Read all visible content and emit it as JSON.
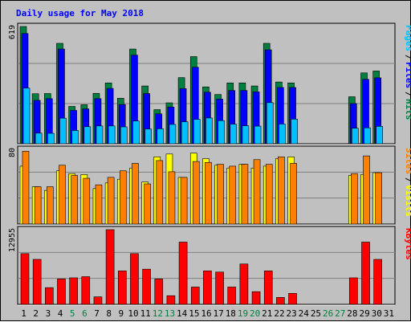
{
  "chart_data": {
    "type": "bar",
    "title": "Daily usage for May 2018",
    "categories": [
      "1",
      "2",
      "3",
      "4",
      "5",
      "6",
      "7",
      "8",
      "9",
      "10",
      "11",
      "12",
      "13",
      "14",
      "15",
      "16",
      "17",
      "18",
      "19",
      "20",
      "21",
      "22",
      "23",
      "24",
      "25",
      "26",
      "27",
      "28",
      "29",
      "30",
      "31"
    ],
    "weekend_days": [
      "5",
      "6",
      "12",
      "13",
      "19",
      "20",
      "26",
      "27"
    ],
    "panels": [
      {
        "name": "pages-files-hits",
        "ymax_label": "619",
        "ylim": [
          0,
          619
        ],
        "legend": [
          "Pages",
          "/",
          "Files",
          "/",
          "Hits"
        ],
        "legend_colors": [
          "#00c0ff",
          "#000000",
          "#0000ff",
          "#000000",
          "#008040"
        ],
        "series": [
          {
            "name": "Hits",
            "color": "#008040",
            "values": [
              619,
              264,
              265,
              530,
              197,
              206,
              266,
              321,
              240,
              500,
              305,
              180,
              216,
              349,
              460,
              300,
              260,
              321,
              321,
              305,
              530,
              326,
              321,
              0,
              0,
              0,
              0,
              248,
              374,
              384,
              0
            ]
          },
          {
            "name": "Files",
            "color": "#0000ff",
            "values": [
              582,
              229,
              238,
              500,
              176,
              184,
              238,
              292,
              207,
              468,
              265,
              158,
              194,
              291,
              404,
              272,
              236,
              281,
              281,
              274,
              496,
              297,
              297,
              0,
              0,
              0,
              0,
              212,
              340,
              348,
              0
            ]
          },
          {
            "name": "Pages",
            "color": "#00c0ff",
            "values": [
              294,
              56,
              55,
              135,
              70,
              90,
              94,
              94,
              89,
              120,
              78,
              79,
              102,
              116,
              129,
              136,
              122,
              103,
              95,
              93,
              217,
              104,
              130,
              0,
              0,
              0,
              0,
              82,
              84,
              92,
              0
            ]
          }
        ]
      },
      {
        "name": "visits-sites",
        "ymax_label": "80",
        "ylim": [
          0,
          80
        ],
        "legend": [
          "Sites",
          "/",
          "Visits"
        ],
        "legend_colors": [
          "#ff8000",
          "#000000",
          "#ffff00"
        ],
        "series": [
          {
            "name": "Visits",
            "color": "#ffff00",
            "values": [
              62,
              40,
              36,
              57,
              54,
              53,
              38,
              44,
              48,
              60,
              45,
              72,
              75,
              50,
              76,
              70,
              63,
              60,
              64,
              60,
              62,
              70,
              72,
              0,
              0,
              0,
              0,
              52,
              53,
              55,
              0
            ]
          },
          {
            "name": "Sites",
            "color": "#ff8000",
            "values": [
              78,
              40,
              40,
              63,
              52,
              49,
              42,
              50,
              57,
              65,
              43,
              68,
              56,
              50,
              67,
              66,
              64,
              62,
              64,
              69,
              64,
              72,
              65,
              0,
              0,
              0,
              0,
              54,
              73,
              55,
              0
            ]
          }
        ]
      },
      {
        "name": "kbytes",
        "ymax_label": "12955",
        "ylim": [
          0,
          12955
        ],
        "legend": [
          "KBytes"
        ],
        "legend_colors": [
          "#ff0000"
        ],
        "series": [
          {
            "name": "KBytes",
            "color": "#ff0000",
            "values": [
              8800,
              7800,
              2900,
              4400,
              4600,
              4800,
              1300,
              12955,
              5800,
              8800,
              6100,
              4400,
              1500,
              10800,
              3000,
              5800,
              5600,
              3000,
              7000,
              2200,
              5800,
              1200,
              1900,
              0,
              0,
              0,
              0,
              4600,
              10800,
              7800,
              0
            ]
          }
        ]
      }
    ],
    "grid": true
  }
}
